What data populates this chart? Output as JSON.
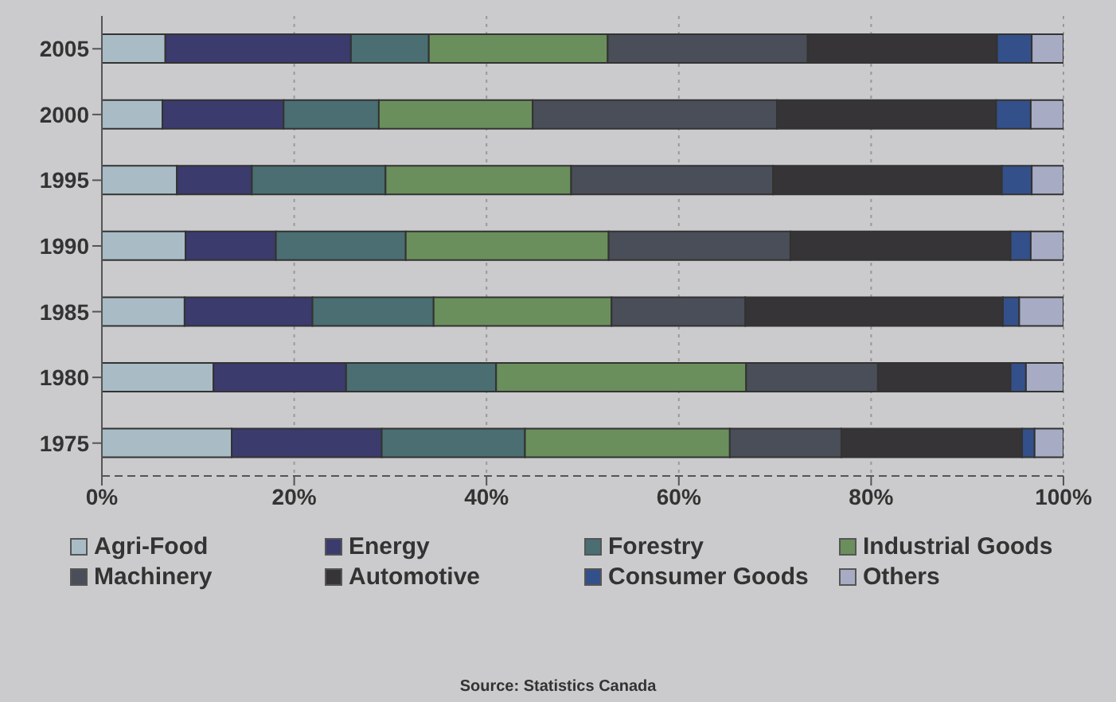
{
  "chart_data": {
    "type": "bar",
    "orientation": "horizontal",
    "stacked": true,
    "categories": [
      "2005",
      "2000",
      "1995",
      "1990",
      "1985",
      "1980",
      "1975"
    ],
    "series": [
      {
        "name": "Agri-Food",
        "color": "#a9bcc6",
        "values": [
          6.6,
          6.3,
          7.8,
          8.7,
          8.6,
          11.6,
          13.5
        ]
      },
      {
        "name": "Energy",
        "color": "#3b3b6e",
        "values": [
          19.3,
          12.6,
          7.8,
          9.4,
          13.3,
          13.8,
          15.6
        ]
      },
      {
        "name": "Forestry",
        "color": "#4a6e72",
        "values": [
          8.1,
          9.9,
          13.9,
          13.5,
          12.6,
          15.6,
          14.9
        ]
      },
      {
        "name": "Industrial Goods",
        "color": "#6a8f5c",
        "values": [
          18.6,
          16.0,
          19.3,
          21.1,
          18.5,
          26.0,
          21.3
        ]
      },
      {
        "name": "Machinery",
        "color": "#4a4e58",
        "values": [
          20.8,
          25.4,
          21.0,
          18.9,
          13.9,
          13.7,
          11.6
        ]
      },
      {
        "name": "Automotive",
        "color": "#363436",
        "values": [
          19.7,
          22.8,
          23.8,
          22.9,
          26.8,
          13.8,
          18.8
        ]
      },
      {
        "name": "Consumer Goods",
        "color": "#34508a",
        "values": [
          3.6,
          3.6,
          3.1,
          2.1,
          1.7,
          1.6,
          1.3
        ]
      },
      {
        "name": "Others",
        "color": "#a7acc4",
        "values": [
          3.3,
          3.4,
          3.3,
          3.4,
          4.6,
          3.9,
          3.0
        ]
      }
    ],
    "xlim": [
      0,
      100
    ],
    "xticks": [
      {
        "value": 0,
        "label": "0%"
      },
      {
        "value": 20,
        "label": "20%"
      },
      {
        "value": 40,
        "label": "40%"
      },
      {
        "value": 60,
        "label": "60%"
      },
      {
        "value": 80,
        "label": "80%"
      },
      {
        "value": 100,
        "label": "100%"
      }
    ],
    "grid": "x",
    "legend": "bottom",
    "annotations": [
      "Source: Statistics Canada"
    ]
  }
}
